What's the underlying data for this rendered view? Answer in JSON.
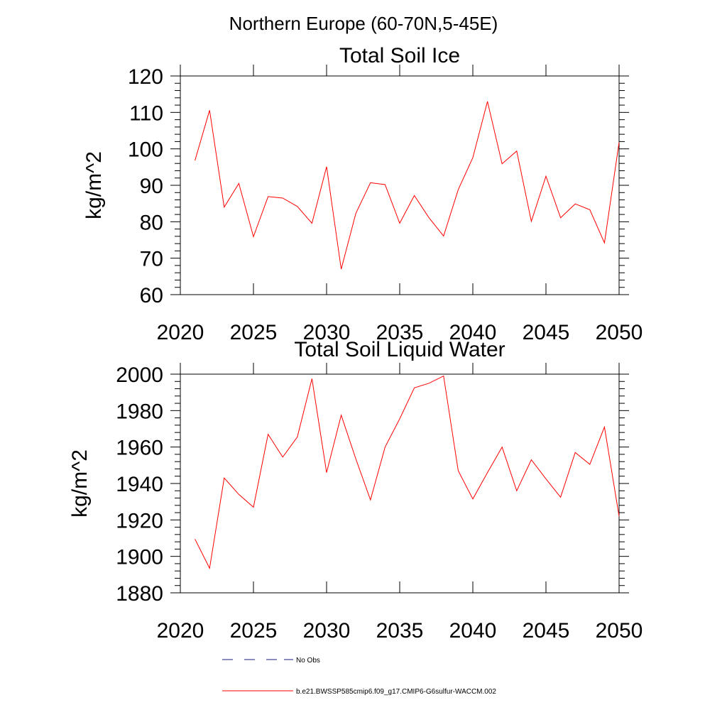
{
  "suptitle": "Northern Europe (60-70N,5-45E)",
  "legend": {
    "items": [
      {
        "label": "No Obs",
        "style": "dashed",
        "color": "#1a1a80"
      },
      {
        "label": "b.e21.BWSSP585cmip6.f09_g17.CMIP6-G6sulfur-WACCM.002",
        "style": "solid",
        "color": "#ff0000"
      }
    ]
  },
  "chart_data": [
    {
      "type": "line",
      "title": "Total Soil Ice",
      "xlabel": "",
      "ylabel": "kg/m^2",
      "xlim": [
        2020,
        2050
      ],
      "ylim": [
        60,
        120
      ],
      "xticks": [
        2020,
        2025,
        2030,
        2035,
        2040,
        2045,
        2050
      ],
      "yticks": [
        60,
        70,
        80,
        90,
        100,
        110,
        120
      ],
      "grid": false,
      "series": [
        {
          "color": "#ff0000",
          "x": [
            2021,
            2022,
            2023,
            2024,
            2025,
            2026,
            2027,
            2028,
            2029,
            2030,
            2031,
            2032,
            2033,
            2034,
            2035,
            2036,
            2037,
            2038,
            2039,
            2040,
            2041,
            2042,
            2043,
            2044,
            2045,
            2046,
            2047,
            2048,
            2049,
            2050
          ],
          "values": [
            96.8,
            110.6,
            84.0,
            90.5,
            75.9,
            86.9,
            86.5,
            84.2,
            79.6,
            95.1,
            67.0,
            82.3,
            90.7,
            90.2,
            79.6,
            87.2,
            81.1,
            76.1,
            88.8,
            97.6,
            113.0,
            95.9,
            99.4,
            80.1,
            92.5,
            81.1,
            84.9,
            83.3,
            74.2,
            101.8
          ]
        }
      ]
    },
    {
      "type": "line",
      "title": "Total Soil Liquid Water",
      "xlabel": "",
      "ylabel": "kg/m^2",
      "xlim": [
        2020,
        2050
      ],
      "ylim": [
        1880,
        2000
      ],
      "xticks": [
        2020,
        2025,
        2030,
        2035,
        2040,
        2045,
        2050
      ],
      "yticks": [
        1880,
        1900,
        1920,
        1940,
        1960,
        1980,
        2000
      ],
      "grid": false,
      "series": [
        {
          "color": "#ff0000",
          "x": [
            2021,
            2022,
            2023,
            2024,
            2025,
            2026,
            2027,
            2028,
            2029,
            2030,
            2031,
            2032,
            2033,
            2034,
            2035,
            2036,
            2037,
            2038,
            2039,
            2040,
            2041,
            2042,
            2043,
            2044,
            2045,
            2046,
            2047,
            2048,
            2049,
            2050
          ],
          "values": [
            1909.5,
            1893.5,
            1943.0,
            1934.0,
            1927.0,
            1967.0,
            1954.5,
            1965.5,
            1997.5,
            1946.0,
            1977.5,
            1953.5,
            1931.0,
            1960.0,
            1975.5,
            1992.5,
            1995.0,
            1999.0,
            1947.0,
            1931.5,
            1946.0,
            1960.0,
            1936.0,
            1953.0,
            1942.5,
            1932.5,
            1957.0,
            1950.5,
            1971.0,
            1922.0
          ]
        }
      ]
    }
  ]
}
